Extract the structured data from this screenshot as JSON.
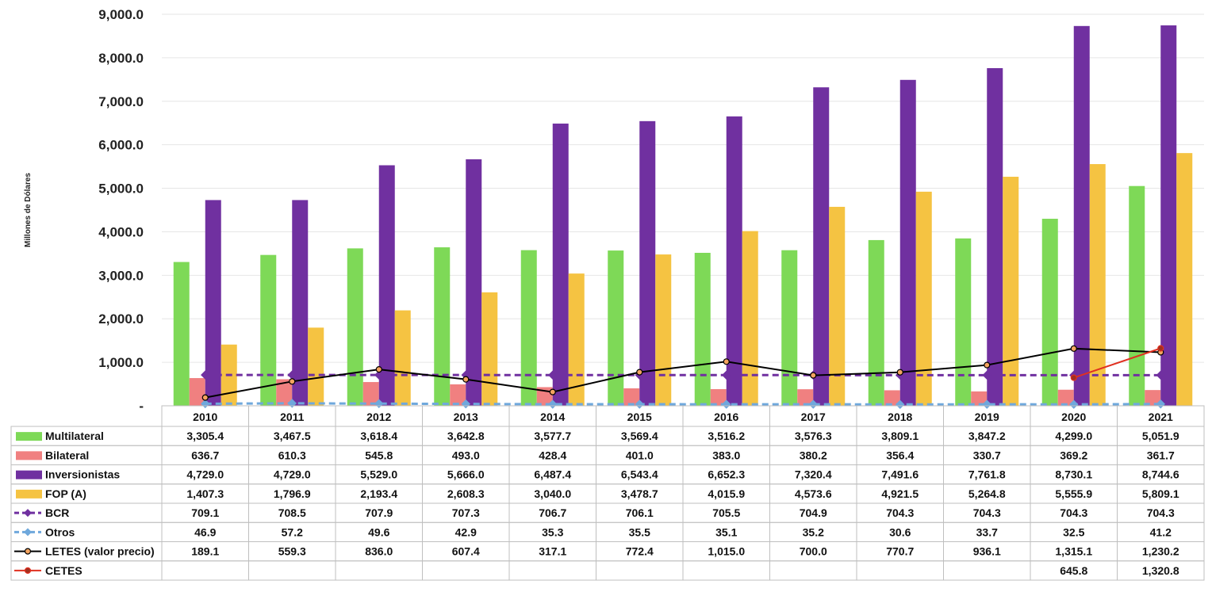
{
  "chart_data": {
    "type": "bar",
    "ylabel": "Millones de Dólares",
    "ylim": [
      0,
      9000
    ],
    "yticks": [
      "-",
      "1,000.0",
      "2,000.0",
      "3,000.0",
      "4,000.0",
      "5,000.0",
      "6,000.0",
      "7,000.0",
      "8,000.0",
      "9,000.0"
    ],
    "categories": [
      "2010",
      "2011",
      "2012",
      "2013",
      "2014",
      "2015",
      "2016",
      "2017",
      "2018",
      "2019",
      "2020",
      "2021"
    ],
    "grid": true,
    "legend": "data-table",
    "series": [
      {
        "name": "Multilateral",
        "kind": "bar",
        "color": "#7ed957",
        "values": [
          3305.4,
          3467.5,
          3618.4,
          3642.8,
          3577.7,
          3569.4,
          3516.2,
          3576.3,
          3809.1,
          3847.2,
          4299.0,
          5051.9
        ],
        "labels": [
          "3,305.4",
          "3,467.5",
          "3,618.4",
          "3,642.8",
          "3,577.7",
          "3,569.4",
          "3,516.2",
          "3,576.3",
          "3,809.1",
          "3,847.2",
          "4,299.0",
          "5,051.9"
        ]
      },
      {
        "name": "Bilateral",
        "kind": "bar",
        "color": "#f08080",
        "values": [
          636.7,
          610.3,
          545.8,
          493.0,
          428.4,
          401.0,
          383.0,
          380.2,
          356.4,
          330.7,
          369.2,
          361.7
        ],
        "labels": [
          "636.7",
          "610.3",
          "545.8",
          "493.0",
          "428.4",
          "401.0",
          "383.0",
          "380.2",
          "356.4",
          "330.7",
          "369.2",
          "361.7"
        ]
      },
      {
        "name": "Inversionistas",
        "kind": "bar",
        "color": "#7030a0",
        "values": [
          4729.0,
          4729.0,
          5529.0,
          5666.0,
          6487.4,
          6543.4,
          6652.3,
          7320.4,
          7491.6,
          7761.8,
          8730.1,
          8744.6
        ],
        "labels": [
          "4,729.0",
          "4,729.0",
          "5,529.0",
          "5,666.0",
          "6,487.4",
          "6,543.4",
          "6,652.3",
          "7,320.4",
          "7,491.6",
          "7,761.8",
          "8,730.1",
          "8,744.6"
        ]
      },
      {
        "name": "FOP (A)",
        "kind": "bar",
        "color": "#f5c342",
        "values": [
          1407.3,
          1796.9,
          2193.4,
          2608.3,
          3040.0,
          3478.7,
          4015.9,
          4573.6,
          4921.5,
          5264.8,
          5555.9,
          5809.1
        ],
        "labels": [
          "1,407.3",
          "1,796.9",
          "2,193.4",
          "2,608.3",
          "3,040.0",
          "3,478.7",
          "4,015.9",
          "4,573.6",
          "4,921.5",
          "5,264.8",
          "5,555.9",
          "5,809.1"
        ]
      },
      {
        "name": "BCR",
        "kind": "line-dashed",
        "color": "#7030a0",
        "values": [
          709.1,
          708.5,
          707.9,
          707.3,
          706.7,
          706.1,
          705.5,
          704.9,
          704.3,
          704.3,
          704.3,
          704.3
        ],
        "labels": [
          "709.1",
          "708.5",
          "707.9",
          "707.3",
          "706.7",
          "706.1",
          "705.5",
          "704.9",
          "704.3",
          "704.3",
          "704.3",
          "704.3"
        ]
      },
      {
        "name": "Otros",
        "kind": "line-dashed",
        "color": "#6fa8dc",
        "values": [
          46.9,
          57.2,
          49.6,
          42.9,
          35.3,
          35.5,
          35.1,
          35.2,
          30.6,
          33.7,
          32.5,
          41.2
        ],
        "labels": [
          "46.9",
          "57.2",
          "49.6",
          "42.9",
          "35.3",
          "35.5",
          "35.1",
          "35.2",
          "30.6",
          "33.7",
          "32.5",
          "41.2"
        ]
      },
      {
        "name": "LETES (valor precio)",
        "kind": "line",
        "color": "#000000",
        "marker_fill": "#f4a460",
        "values": [
          189.1,
          559.3,
          836.0,
          607.4,
          317.1,
          772.4,
          1015.0,
          700.0,
          770.7,
          936.1,
          1315.1,
          1230.2
        ],
        "labels": [
          "189.1",
          "559.3",
          "836.0",
          "607.4",
          "317.1",
          "772.4",
          "1,015.0",
          "700.0",
          "770.7",
          "936.1",
          "1,315.1",
          "1,230.2"
        ]
      },
      {
        "name": "CETES",
        "kind": "line",
        "color": "#e03020",
        "marker_fill": "#a03020",
        "values": [
          null,
          null,
          null,
          null,
          null,
          null,
          null,
          null,
          null,
          null,
          645.8,
          1320.8
        ],
        "labels": [
          "",
          "",
          "",
          "",
          "",
          "",
          "",
          "",
          "",
          "",
          "645.8",
          "1,320.8"
        ]
      }
    ]
  }
}
